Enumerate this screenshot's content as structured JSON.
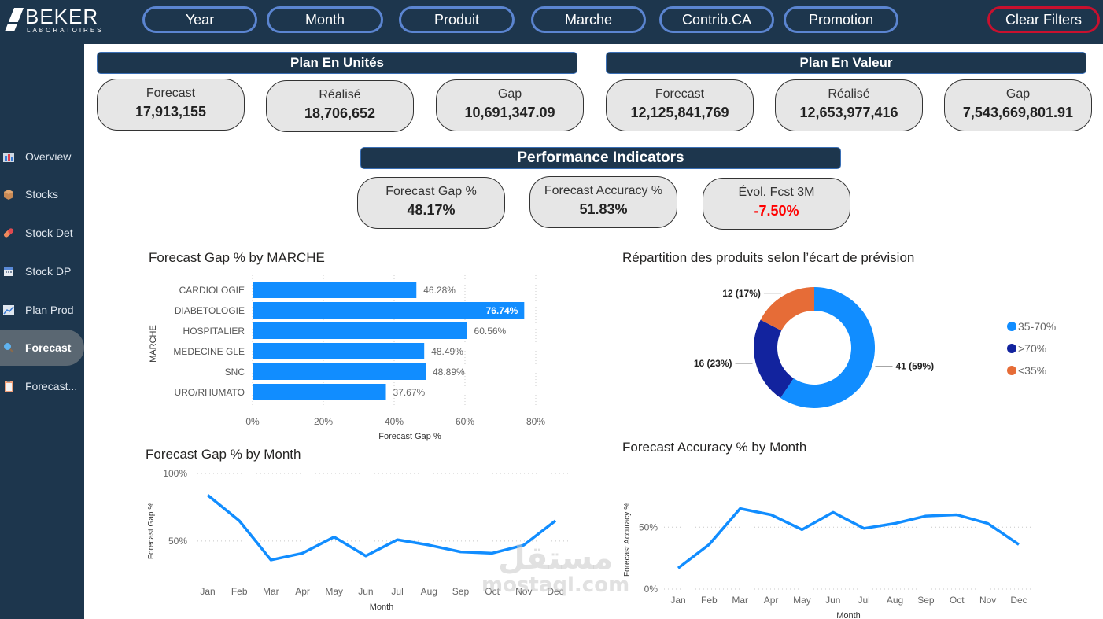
{
  "logo": {
    "name": "BEKER",
    "subtitle": "LABORATOIRES"
  },
  "filters": [
    {
      "label": "Year"
    },
    {
      "label": "Month"
    },
    {
      "label": "Produit"
    },
    {
      "label": "Marche"
    },
    {
      "label": "Contrib.CA"
    },
    {
      "label": "Promotion"
    }
  ],
  "clear_filters": {
    "label": "Clear Filters"
  },
  "sidebar": {
    "items": [
      {
        "label": "Overview",
        "icon": "bar-chart-icon"
      },
      {
        "label": "Stocks",
        "icon": "package-icon"
      },
      {
        "label": "Stock Det",
        "icon": "pill-icon"
      },
      {
        "label": "Stock DP",
        "icon": "calendar-icon"
      },
      {
        "label": "Plan Prod",
        "icon": "line-chart-icon"
      },
      {
        "label": "Forecast",
        "icon": "magnifier-icon",
        "active": true
      },
      {
        "label": "Forecast...",
        "icon": "clipboard-icon"
      }
    ]
  },
  "plan_unites": {
    "title": "Plan En Unités",
    "cards": [
      {
        "label": "Forecast",
        "value": "17,913,155"
      },
      {
        "label": "Réalisé",
        "value": "18,706,652"
      },
      {
        "label": "Gap",
        "value": "10,691,347.09"
      }
    ]
  },
  "plan_valeur": {
    "title": "Plan En Valeur",
    "cards": [
      {
        "label": "Forecast",
        "value": "12,125,841,769"
      },
      {
        "label": "Réalisé",
        "value": "12,653,977,416"
      },
      {
        "label": "Gap",
        "value": "7,543,669,801.91"
      }
    ]
  },
  "performance": {
    "title": "Performance Indicators",
    "cards": [
      {
        "label": "Forecast Gap %",
        "value": "48.17%"
      },
      {
        "label": "Forecast Accuracy %",
        "value": "51.83%"
      },
      {
        "label": "Évol. Fcst 3M",
        "value": "-7.50%",
        "negative": true
      }
    ]
  },
  "colors": {
    "accent": "#118dff",
    "dark_blue": "#12239e",
    "orange": "#e66c37",
    "navy": "#1d364d",
    "filter_border": "#5b85d1",
    "clear_border": "#c8102e",
    "negative": "#ff0000"
  },
  "chart_data": [
    {
      "id": "gap_by_marche",
      "type": "bar",
      "orientation": "horizontal",
      "title": "Forecast Gap % by MARCHE",
      "xlabel": "Forecast Gap %",
      "ylabel": "MARCHE",
      "categories": [
        "CARDIOLOGIE",
        "DIABETOLOGIE",
        "HOSPITALIER",
        "MEDECINE GLE",
        "SNC",
        "URO/RHUMATO"
      ],
      "values": [
        46.28,
        76.74,
        60.56,
        48.49,
        48.89,
        37.67
      ],
      "data_labels": [
        "46.28%",
        "76.74%",
        "60.56%",
        "48.49%",
        "48.89%",
        "37.67%"
      ],
      "xlim": [
        0,
        80
      ],
      "xticks": [
        "0%",
        "20%",
        "40%",
        "60%",
        "80%"
      ],
      "grid": true
    },
    {
      "id": "repartition",
      "type": "pie",
      "donut": true,
      "title": "Répartition des produits selon l’écart de prévision",
      "slices": [
        {
          "label": "35-70%",
          "value": 41,
          "pct": 59,
          "data_label": "41 (59%)",
          "color": "#118dff"
        },
        {
          "label": ">70%",
          "value": 16,
          "pct": 23,
          "data_label": "16 (23%)",
          "color": "#12239e"
        },
        {
          "label": "<35%",
          "value": 12,
          "pct": 17,
          "data_label": "12 (17%)",
          "color": "#e66c37"
        }
      ],
      "legend": "right"
    },
    {
      "id": "gap_by_month",
      "type": "line",
      "title": "Forecast Gap % by Month",
      "xlabel": "Month",
      "ylabel": "Forecast Gap %",
      "x": [
        "Jan",
        "Feb",
        "Mar",
        "Apr",
        "May",
        "Jun",
        "Jul",
        "Aug",
        "Sep",
        "Oct",
        "Nov",
        "Dec"
      ],
      "values": [
        84,
        65,
        36,
        41,
        53,
        39,
        51,
        47,
        42,
        41,
        47,
        65
      ],
      "ylim": [
        15,
        100
      ],
      "yticks": [
        {
          "v": 100,
          "label": "100%"
        },
        {
          "v": 50,
          "label": "50%"
        }
      ],
      "grid": true
    },
    {
      "id": "accuracy_by_month",
      "type": "line",
      "title": "Forecast Accuracy % by Month",
      "xlabel": "Month",
      "ylabel": "Forecast Accuracy %",
      "x": [
        "Jan",
        "Feb",
        "Mar",
        "Apr",
        "May",
        "Jun",
        "Jul",
        "Aug",
        "Sep",
        "Oct",
        "Nov",
        "Dec"
      ],
      "values": [
        17,
        36,
        65,
        60,
        48,
        62,
        49,
        53,
        59,
        60,
        53,
        36
      ],
      "ylim": [
        0,
        80
      ],
      "yticks": [
        {
          "v": 50,
          "label": "50%"
        },
        {
          "v": 0,
          "label": "0%"
        }
      ],
      "grid": true
    }
  ],
  "watermark": {
    "arabic": "مستقل",
    "latin": "mostaql.com"
  }
}
